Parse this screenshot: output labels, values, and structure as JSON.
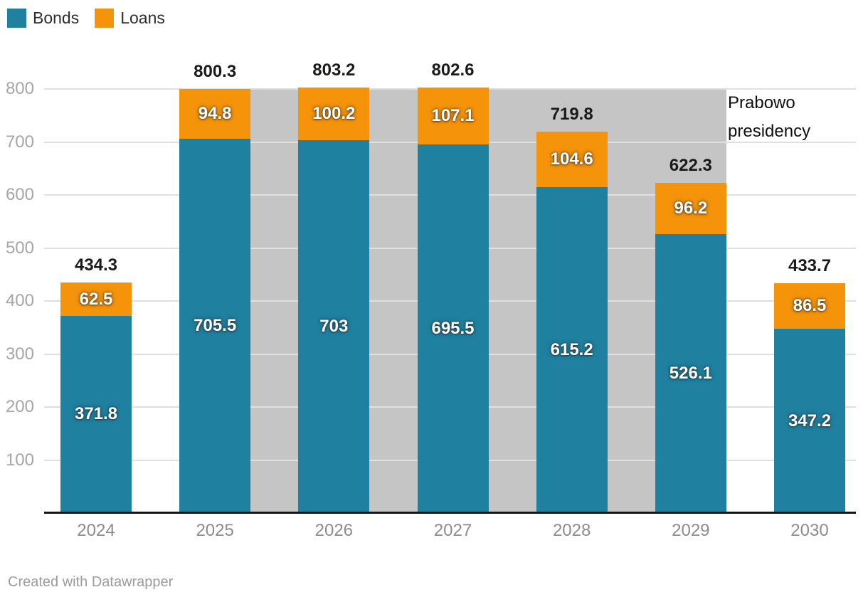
{
  "legend": {
    "items": [
      {
        "label": "Bonds",
        "color": "#1f80a0"
      },
      {
        "label": "Loans",
        "color": "#f5930b"
      }
    ]
  },
  "chart_data": {
    "type": "bar",
    "stacked": true,
    "categories": [
      "2024",
      "2025",
      "2026",
      "2027",
      "2028",
      "2029",
      "2030"
    ],
    "series": [
      {
        "name": "Bonds",
        "color": "#1f80a0",
        "values": [
          371.8,
          705.5,
          703,
          695.5,
          615.2,
          526.1,
          347.2
        ],
        "labels": [
          "371.8",
          "705.5",
          "703",
          "695.5",
          "615.2",
          "526.1",
          "347.2"
        ]
      },
      {
        "name": "Loans",
        "color": "#f5930b",
        "values": [
          62.5,
          94.8,
          100.2,
          107.1,
          104.6,
          96.2,
          86.5
        ],
        "labels": [
          "62.5",
          "94.8",
          "100.2",
          "107.1",
          "104.6",
          "96.2",
          "86.5"
        ]
      }
    ],
    "totals": [
      434.3,
      800.3,
      803.2,
      802.6,
      719.8,
      622.3,
      433.7
    ],
    "total_labels": [
      "434.3",
      "800.3",
      "803.2",
      "802.6",
      "719.8",
      "622.3",
      "433.7"
    ],
    "ylim": [
      0,
      800
    ],
    "yticks": [
      100,
      200,
      300,
      400,
      500,
      600,
      700,
      800
    ],
    "ytick_labels": [
      "100",
      "200",
      "300",
      "400",
      "500",
      "600",
      "700",
      "800"
    ],
    "grid": true,
    "legend_position": "top-left",
    "highlight_band": {
      "label": "Prabowo presidency",
      "from_category": "2025",
      "to_category": "2029",
      "color": "#c5c5c5"
    }
  },
  "annotation": {
    "label": "Prabowo presidency"
  },
  "footer": {
    "credit": "Created with Datawrapper"
  },
  "colors": {
    "bonds": "#1f80a0",
    "loans": "#f5930b",
    "band": "#c5c5c5",
    "grid": "#e0e0e0",
    "axis": "#161616",
    "ytick_text": "#a6a6a6",
    "xtick_text": "#8c8c8c"
  }
}
